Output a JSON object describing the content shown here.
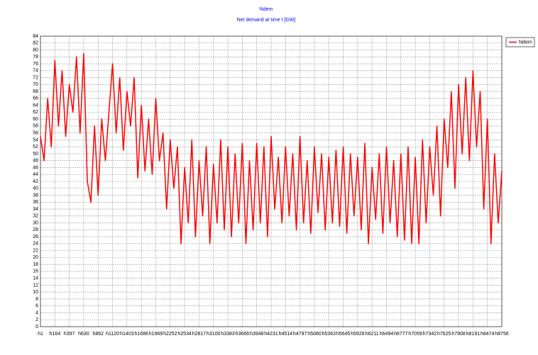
{
  "chart_data": {
    "type": "line",
    "title": "Ndem",
    "subtitle": "Net demand at time t [GW]",
    "categories": [
      "h1",
      null,
      null,
      null,
      "h164",
      null,
      null,
      null,
      "h397",
      null,
      null,
      null,
      "h630",
      null,
      null,
      null,
      "h862",
      null,
      null,
      null,
      "h1120",
      null,
      null,
      null,
      "h1403",
      null,
      null,
      null,
      "h1686",
      null,
      null,
      null,
      "h1969",
      null,
      null,
      null,
      "h2252",
      null,
      null,
      null,
      "h2534",
      null,
      null,
      null,
      "h2817",
      null,
      null,
      null,
      "h3100",
      null,
      null,
      null,
      "h3383",
      null,
      null,
      null,
      "h3666",
      null,
      null,
      null,
      "h3948",
      null,
      null,
      null,
      "h4231",
      null,
      null,
      null,
      "h4514",
      null,
      null,
      null,
      "h4797",
      null,
      null,
      null,
      "h5080",
      null,
      null,
      null,
      "h5363",
      null,
      null,
      null,
      "h5645",
      null,
      null,
      null,
      "h5928",
      null,
      null,
      null,
      "h6211",
      null,
      null,
      null,
      "h6494",
      null,
      null,
      null,
      "h6777",
      null,
      null,
      null,
      "h7059",
      null,
      null,
      null,
      "h7342",
      null,
      null,
      null,
      "h7625",
      null,
      null,
      null,
      "h7908",
      null,
      null,
      null,
      "h8191",
      null,
      null,
      null,
      "h8474",
      null,
      null,
      null,
      "h8756"
    ],
    "series": [
      {
        "name": "Ndem",
        "color": "#ff0000",
        "values": [
          55,
          48,
          66,
          52,
          77,
          58,
          74,
          55,
          70,
          62,
          78,
          56,
          79,
          42,
          36,
          58,
          38,
          60,
          48,
          62,
          76,
          56,
          72,
          51,
          68,
          58,
          72,
          43,
          64,
          45,
          60,
          44,
          66,
          48,
          56,
          34,
          54,
          40,
          52,
          24,
          46,
          30,
          54,
          26,
          48,
          32,
          52,
          24,
          47,
          30,
          54,
          28,
          52,
          26,
          50,
          30,
          53,
          24,
          48,
          28,
          53,
          30,
          52,
          26,
          55,
          34,
          49,
          30,
          52,
          32,
          50,
          28,
          55,
          30,
          48,
          27,
          52,
          33,
          50,
          28,
          49,
          30,
          51,
          29,
          52,
          27,
          50,
          32,
          49,
          28,
          53,
          24,
          46,
          31,
          50,
          27,
          52,
          30,
          48,
          26,
          50,
          25,
          52,
          24,
          49,
          24,
          54,
          30,
          52,
          38,
          58,
          32,
          60,
          46,
          68,
          40,
          70,
          50,
          72,
          48,
          74,
          52,
          68,
          34,
          60,
          24,
          50,
          30,
          45
        ]
      }
    ],
    "ylim": [
      0,
      84
    ],
    "yticks": [
      0,
      2,
      4,
      6,
      8,
      10,
      12,
      14,
      16,
      18,
      20,
      22,
      24,
      26,
      28,
      30,
      32,
      34,
      36,
      38,
      40,
      42,
      44,
      46,
      48,
      50,
      52,
      54,
      56,
      58,
      60,
      62,
      64,
      66,
      68,
      70,
      72,
      74,
      76,
      78,
      80,
      82,
      84
    ],
    "grid": true,
    "legend": "top-right"
  }
}
